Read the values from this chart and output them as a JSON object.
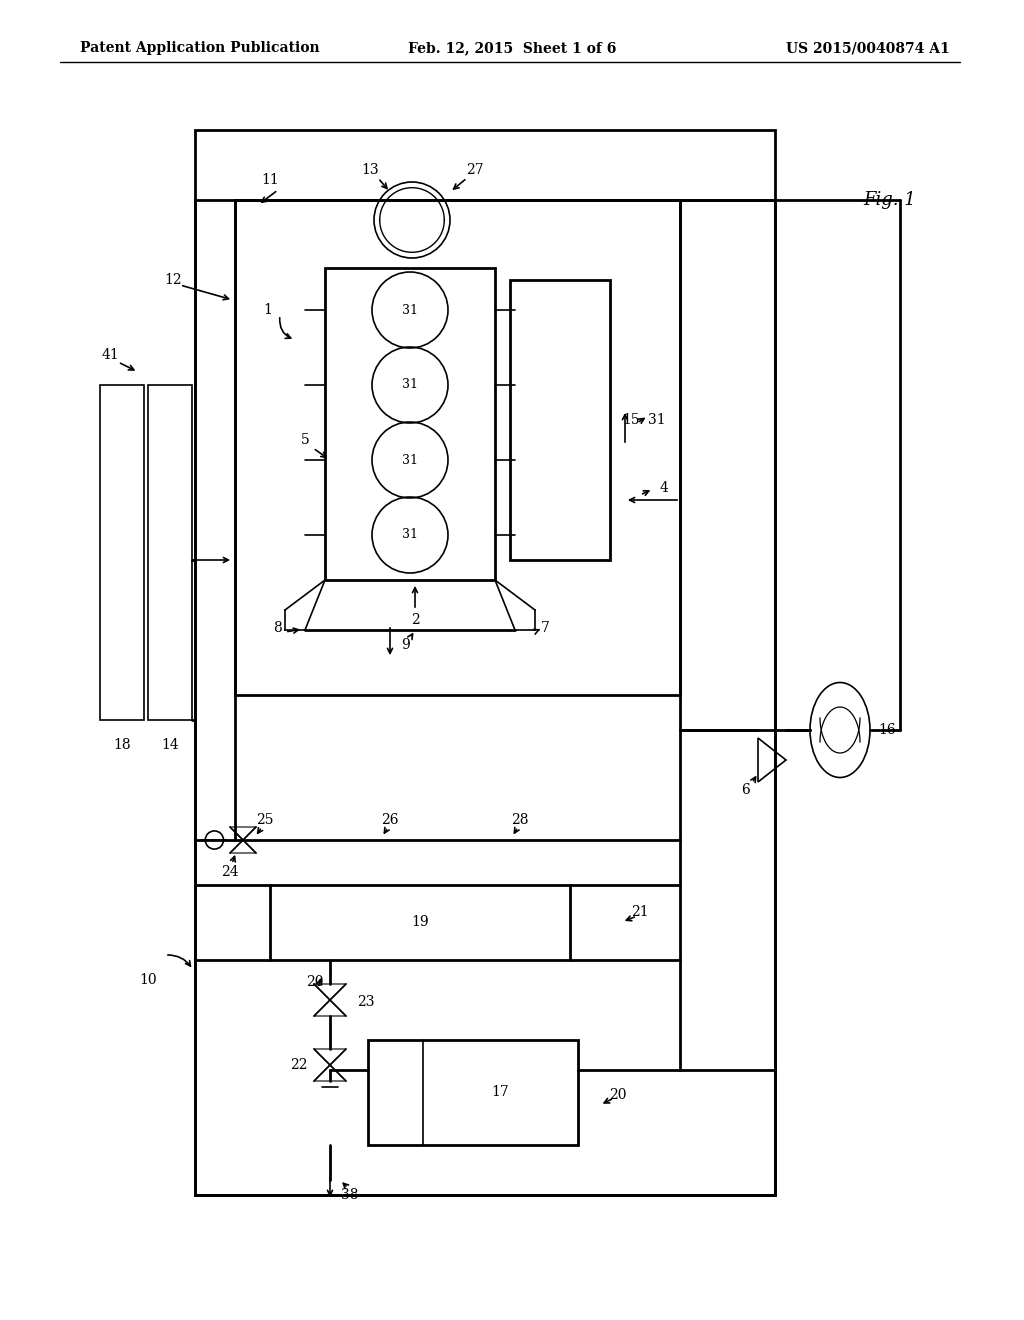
{
  "bg_color": "#ffffff",
  "line_color": "#000000",
  "header_left": "Patent Application Publication",
  "header_center": "Feb. 12, 2015  Sheet 1 of 6",
  "header_right": "US 2015/0040874 A1",
  "fig_label": "Fig. 1"
}
